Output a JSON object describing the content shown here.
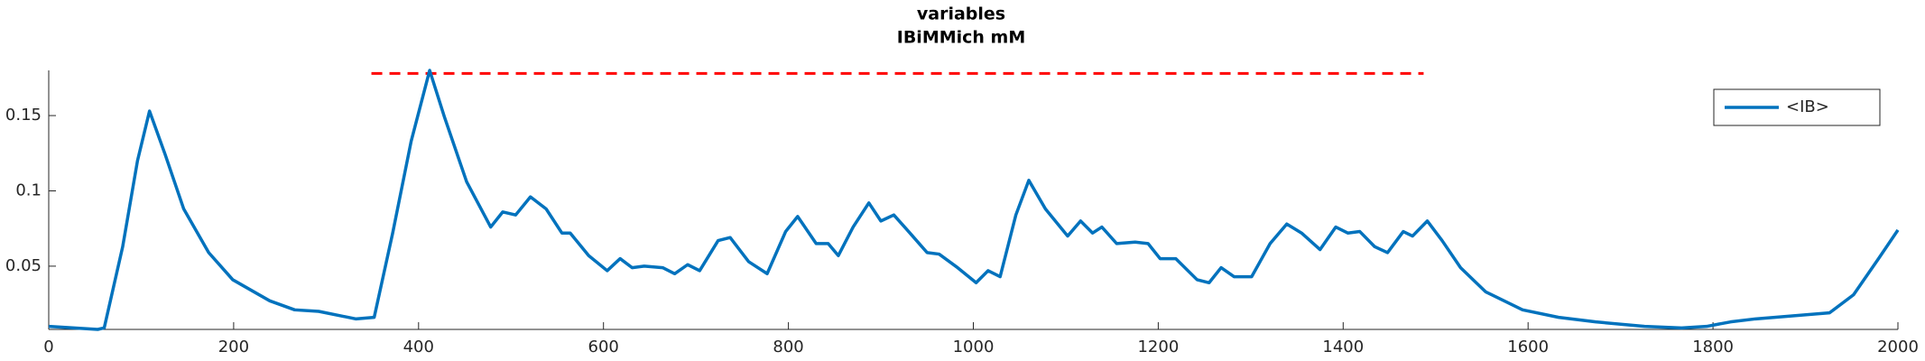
{
  "chart_data": {
    "type": "line",
    "title": "variables",
    "subtitle": "IBiMMich mM",
    "xlim": [
      0,
      2000
    ],
    "xticks": [
      0,
      200,
      400,
      600,
      800,
      1000,
      1200,
      1400,
      1600,
      1800,
      2000
    ],
    "ylim": [
      0.008,
      0.18
    ],
    "yticks": [
      0.05,
      0.1,
      0.15
    ],
    "legend": "upper right",
    "reference_line": {
      "y": 0.178,
      "x": [
        349,
        1487
      ],
      "color": "#ff0000"
    },
    "x": [
      0,
      53,
      60,
      80,
      96,
      109,
      126,
      146,
      173,
      199,
      239,
      266,
      292,
      332,
      352,
      372,
      392,
      412,
      428,
      452,
      478,
      491,
      505,
      521,
      538,
      555,
      564,
      584,
      604,
      618,
      631,
      644,
      664,
      677,
      691,
      704,
      724,
      737,
      757,
      777,
      797,
      810,
      830,
      843,
      854,
      870,
      887,
      900,
      914,
      930,
      950,
      963,
      983,
      1003,
      1016,
      1029,
      1046,
      1060,
      1078,
      1102,
      1116,
      1129,
      1139,
      1155,
      1175,
      1189,
      1202,
      1219,
      1242,
      1255,
      1268,
      1282,
      1301,
      1321,
      1339,
      1355,
      1375,
      1392,
      1405,
      1418,
      1434,
      1448,
      1465,
      1475,
      1491,
      1507,
      1527,
      1554,
      1594,
      1633,
      1673,
      1726,
      1766,
      1793,
      1819,
      1846,
      1886,
      1926,
      1952,
      1979,
      2000
    ],
    "series": [
      {
        "name": "<IB>",
        "color": "#0072bd",
        "values": [
          0.01,
          0.008,
          0.009,
          0.063,
          0.12,
          0.153,
          0.124,
          0.088,
          0.059,
          0.041,
          0.027,
          0.021,
          0.02,
          0.015,
          0.016,
          0.072,
          0.133,
          0.18,
          0.149,
          0.106,
          0.076,
          0.086,
          0.084,
          0.096,
          0.088,
          0.072,
          0.072,
          0.057,
          0.047,
          0.055,
          0.049,
          0.05,
          0.049,
          0.045,
          0.051,
          0.047,
          0.067,
          0.069,
          0.053,
          0.045,
          0.073,
          0.083,
          0.065,
          0.065,
          0.057,
          0.076,
          0.092,
          0.08,
          0.084,
          0.073,
          0.059,
          0.058,
          0.049,
          0.039,
          0.047,
          0.043,
          0.084,
          0.107,
          0.088,
          0.07,
          0.08,
          0.072,
          0.076,
          0.065,
          0.066,
          0.065,
          0.055,
          0.055,
          0.041,
          0.039,
          0.049,
          0.043,
          0.043,
          0.065,
          0.078,
          0.072,
          0.061,
          0.076,
          0.072,
          0.073,
          0.063,
          0.059,
          0.073,
          0.07,
          0.08,
          0.067,
          0.049,
          0.033,
          0.021,
          0.016,
          0.013,
          0.01,
          0.009,
          0.01,
          0.013,
          0.015,
          0.017,
          0.019,
          0.031,
          0.055,
          0.074
        ]
      }
    ]
  }
}
